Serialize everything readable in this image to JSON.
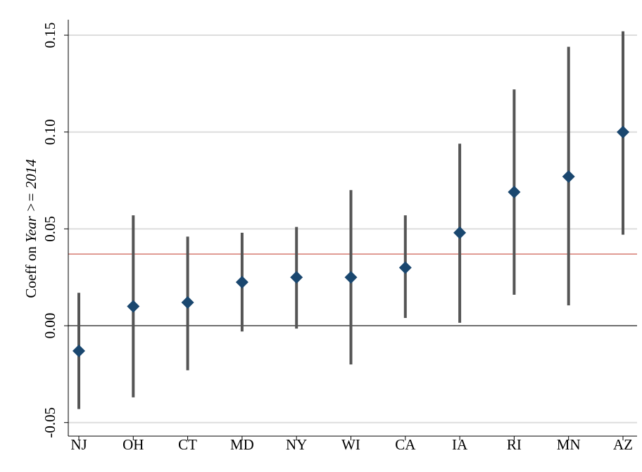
{
  "chart_data": {
    "type": "errorbar",
    "ylabel": {
      "text": "Coeff on",
      "italic": "Year >= 2014"
    },
    "categories": [
      "NJ",
      "OH",
      "CT",
      "MD",
      "NY",
      "WI",
      "CA",
      "IA",
      "RI",
      "MN",
      "AZ"
    ],
    "values": [
      -0.013,
      0.01,
      0.012,
      0.0225,
      0.025,
      0.025,
      0.03,
      0.048,
      0.069,
      0.077,
      0.1
    ],
    "ci_low": [
      -0.043,
      -0.037,
      -0.023,
      -0.003,
      -0.0015,
      -0.02,
      0.004,
      0.0015,
      0.016,
      0.0105,
      0.047
    ],
    "ci_high": [
      0.017,
      0.057,
      0.046,
      0.048,
      0.051,
      0.07,
      0.057,
      0.094,
      0.122,
      0.144,
      0.152
    ],
    "color": "#1a476f",
    "bar_color": "#555555",
    "ylim": [
      -0.057,
      0.158
    ],
    "yticks": [
      {
        "value": -0.05,
        "label": "-0.05"
      },
      {
        "value": 0,
        "label": "0.00"
      },
      {
        "value": 0.05,
        "label": "0.05"
      },
      {
        "value": 0.1,
        "label": "0.10"
      },
      {
        "value": 0.15,
        "label": "0.15"
      }
    ],
    "grid": true,
    "grid_color": "#dddddd",
    "zero_line": {
      "value": 0,
      "color": "#000000"
    },
    "reference_line": {
      "value": 0.037,
      "color": "#c0392b"
    }
  }
}
